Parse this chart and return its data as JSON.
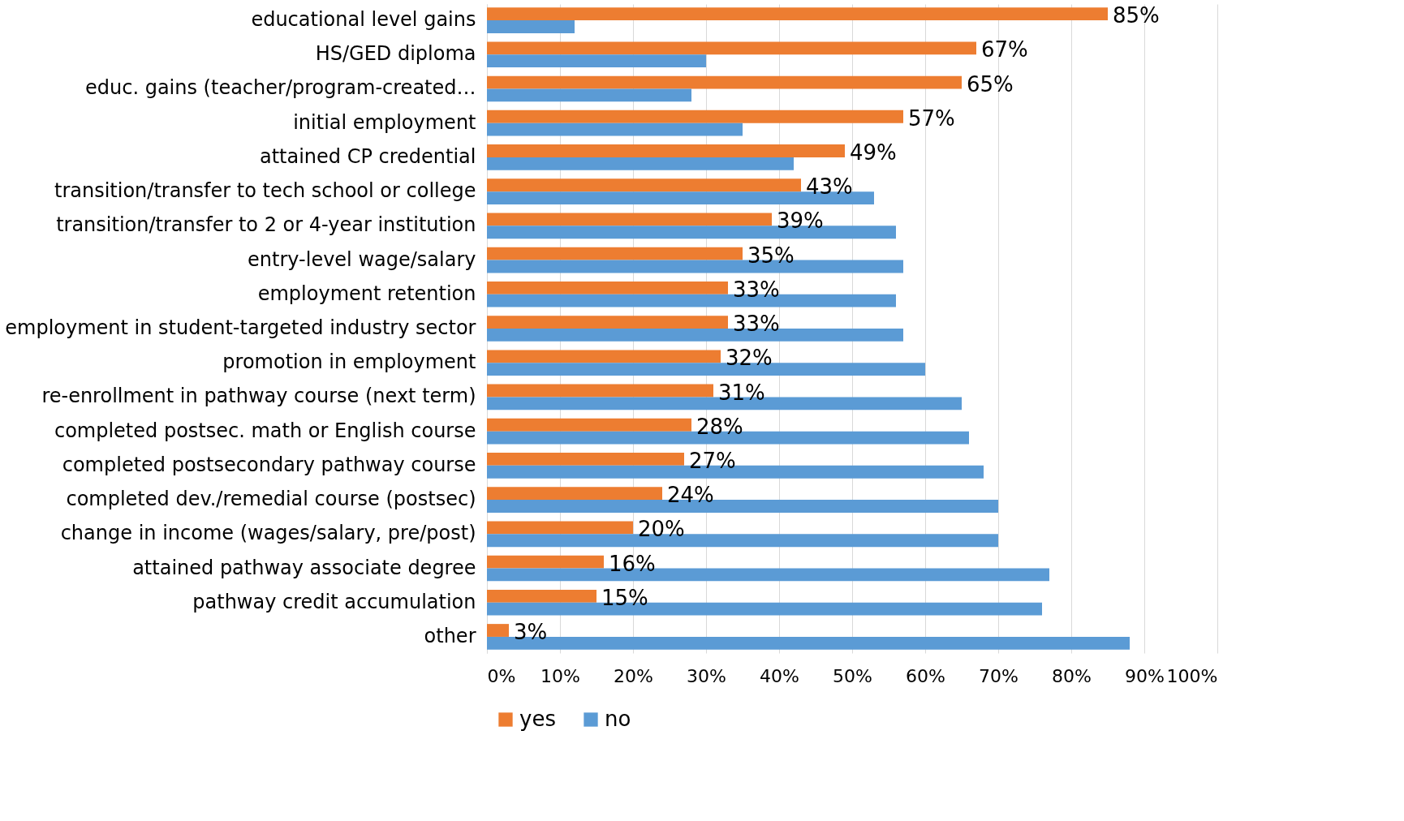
{
  "chart_data": {
    "type": "bar",
    "orientation": "horizontal",
    "categories": [
      "educational level gains",
      "HS/GED diploma",
      "educ. gains (teacher/program-created…",
      "initial employment",
      "attained CP credential",
      "transition/transfer to tech school or college",
      "transition/transfer to 2 or 4-year institution",
      "entry-level wage/salary",
      "employment retention",
      "employment in student-targeted industry sector",
      "promotion in employment",
      "re-enrollment in pathway course (next term)",
      "completed postsec. math or English course",
      "completed postsecondary pathway course",
      "completed dev./remedial course (postsec)",
      "change in income (wages/salary, pre/post)",
      "attained pathway associate degree",
      "pathway credit accumulation",
      "other"
    ],
    "series": [
      {
        "name": "yes",
        "color": "#ed7d31",
        "values": [
          85,
          67,
          65,
          57,
          49,
          43,
          39,
          35,
          33,
          33,
          32,
          31,
          28,
          27,
          24,
          20,
          16,
          15,
          3
        ],
        "value_labels": [
          "85%",
          "67%",
          "65%",
          "57%",
          "49%",
          "43%",
          "39%",
          "35%",
          "33%",
          "33%",
          "32%",
          "31%",
          "28%",
          "27%",
          "24%",
          "20%",
          "16%",
          "15%",
          "3%"
        ]
      },
      {
        "name": "no",
        "color": "#5b9bd5",
        "values": [
          12,
          30,
          28,
          35,
          42,
          53,
          56,
          57,
          56,
          57,
          60,
          65,
          66,
          68,
          70,
          70,
          77,
          76,
          88
        ]
      }
    ],
    "xlim": [
      0,
      100
    ],
    "xticks": [
      {
        "value": 0,
        "label": "0%"
      },
      {
        "value": 10,
        "label": "10%"
      },
      {
        "value": 20,
        "label": "20%"
      },
      {
        "value": 30,
        "label": "30%"
      },
      {
        "value": 40,
        "label": "40%"
      },
      {
        "value": 50,
        "label": "50%"
      },
      {
        "value": 60,
        "label": "60%"
      },
      {
        "value": 70,
        "label": "70%"
      },
      {
        "value": 80,
        "label": "80%"
      },
      {
        "value": 90,
        "label": "90%"
      },
      {
        "value": 100,
        "label": "100%"
      }
    ],
    "grid": "x",
    "legend": "bottom"
  }
}
